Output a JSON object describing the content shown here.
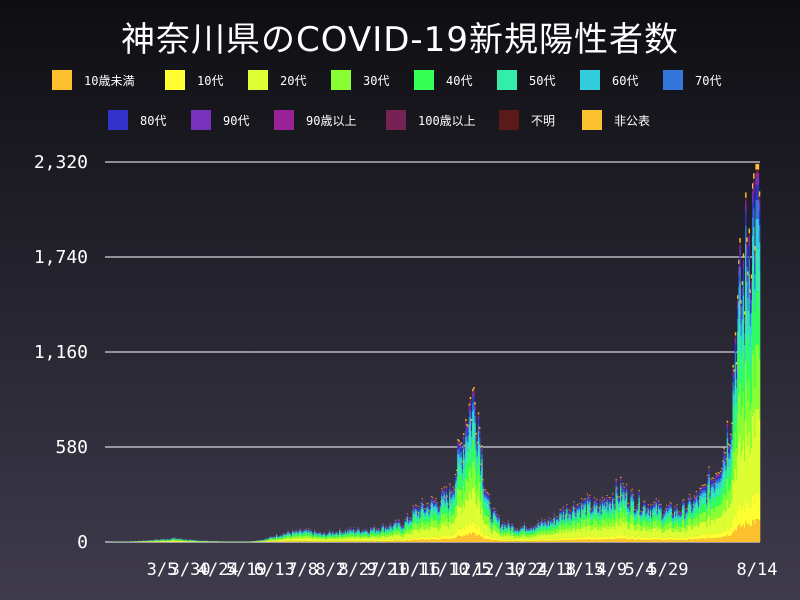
{
  "title": "神奈川県のCOVID-19新規陽性者数",
  "colors": {
    "background_top": "#0e0e12",
    "background_bottom": "#3f3b4d",
    "grid": "#ffffff",
    "text": "#ffffff"
  },
  "chart_data": {
    "type": "bar",
    "stacked": true,
    "title": "神奈川県のCOVID-19新規陽性者数",
    "xlabel": "",
    "ylabel": "",
    "ylim": [
      0,
      2320
    ],
    "yticks": [
      "0",
      "580",
      "1,160",
      "1,740",
      "2,320"
    ],
    "xticks": [
      "3/5",
      "3/30",
      "4/24",
      "5/19",
      "6/13",
      "7/8",
      "8/2",
      "8/27",
      "9/21",
      "10/16",
      "11/10",
      "12/5",
      "12/30",
      "1/24",
      "2/18",
      "3/15",
      "4/9",
      "5/4",
      "5/29",
      "8/14"
    ],
    "grid": "horizontal",
    "legend_position": "top",
    "series": [
      {
        "name": "10歳未満",
        "color": "#fdc02f"
      },
      {
        "name": "10代",
        "color": "#ffff33"
      },
      {
        "name": "20代",
        "color": "#ddff33"
      },
      {
        "name": "30代",
        "color": "#88ff33"
      },
      {
        "name": "40代",
        "color": "#33ff55"
      },
      {
        "name": "50代",
        "color": "#33eeaa"
      },
      {
        "name": "60代",
        "color": "#33ccdd"
      },
      {
        "name": "70代",
        "color": "#3377dd"
      },
      {
        "name": "80代",
        "color": "#3333cc"
      },
      {
        "name": "90代",
        "color": "#7733bb"
      },
      {
        "name": "90歳以上",
        "color": "#992299"
      },
      {
        "name": "100歳以上",
        "color": "#772255"
      },
      {
        "name": "不明",
        "color": "#5a1a1a"
      },
      {
        "name": "非公表",
        "color": "#fdc02f"
      }
    ],
    "totals_envelope": [
      [
        0,
        0
      ],
      [
        25,
        5
      ],
      [
        50,
        18
      ],
      [
        60,
        25
      ],
      [
        75,
        12
      ],
      [
        100,
        4
      ],
      [
        125,
        3
      ],
      [
        140,
        20
      ],
      [
        150,
        45
      ],
      [
        160,
        60
      ],
      [
        175,
        70
      ],
      [
        190,
        50
      ],
      [
        200,
        65
      ],
      [
        215,
        75
      ],
      [
        230,
        80
      ],
      [
        245,
        100
      ],
      [
        260,
        120
      ],
      [
        270,
        200
      ],
      [
        280,
        230
      ],
      [
        290,
        260
      ],
      [
        300,
        300
      ],
      [
        305,
        450
      ],
      [
        310,
        600
      ],
      [
        315,
        800
      ],
      [
        320,
        900
      ],
      [
        325,
        800
      ],
      [
        330,
        400
      ],
      [
        335,
        200
      ],
      [
        345,
        120
      ],
      [
        360,
        90
      ],
      [
        375,
        110
      ],
      [
        390,
        140
      ],
      [
        400,
        200
      ],
      [
        410,
        230
      ],
      [
        420,
        240
      ],
      [
        430,
        220
      ],
      [
        440,
        290
      ],
      [
        450,
        330
      ],
      [
        460,
        270
      ],
      [
        470,
        240
      ],
      [
        480,
        220
      ],
      [
        490,
        200
      ],
      [
        500,
        200
      ],
      [
        510,
        240
      ],
      [
        520,
        300
      ],
      [
        530,
        420
      ],
      [
        540,
        600
      ],
      [
        545,
        800
      ],
      [
        550,
        1400
      ],
      [
        555,
        1600
      ],
      [
        560,
        1900
      ],
      [
        565,
        2100
      ],
      [
        570,
        2320
      ]
    ]
  }
}
